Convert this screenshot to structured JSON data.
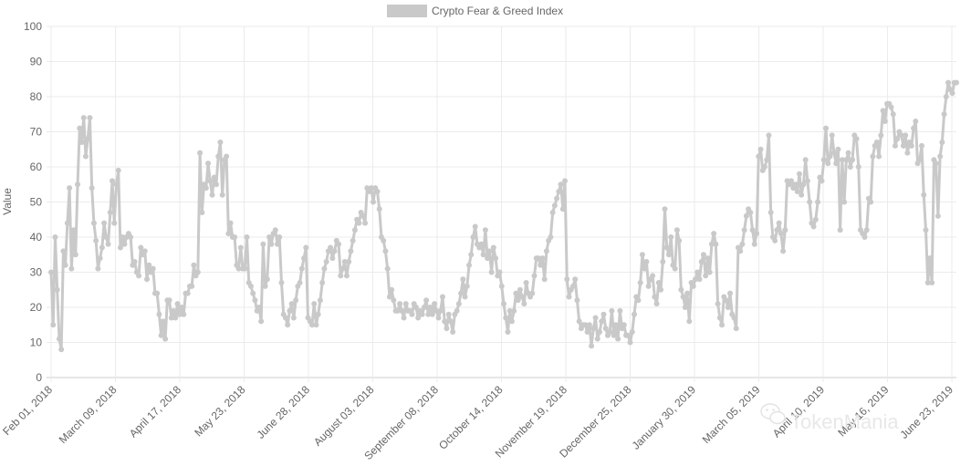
{
  "chart_data": {
    "type": "line",
    "legend": {
      "label": "Crypto Fear & Greed Index",
      "position": "top"
    },
    "ylabel": "Value",
    "ylim": [
      0,
      100
    ],
    "y_ticks": [
      "0",
      "10",
      "20",
      "30",
      "40",
      "50",
      "60",
      "70",
      "80",
      "90",
      "100"
    ],
    "x_ticks": [
      "Feb 01, 2018",
      "March 09, 2018",
      "April 17, 2018",
      "May 23, 2018",
      "June 28, 2018",
      "August 03, 2018",
      "September 08, 2018",
      "October 14, 2018",
      "November 19, 2018",
      "December 25, 2018",
      "January 30, 2019",
      "March 05, 2019",
      "April 10, 2019",
      "May 16, 2019",
      "June 23, 2019"
    ],
    "x_range": [
      "2018-02-01",
      "2019-06-26"
    ],
    "grid": true,
    "series": [
      {
        "name": "Crypto Fear & Greed Index",
        "color": "#c9c9c9",
        "values": [
          30,
          15,
          40,
          25,
          11,
          8,
          36,
          32,
          44,
          54,
          31,
          42,
          35,
          55,
          71,
          67,
          74,
          63,
          68,
          74,
          54,
          44,
          39,
          31,
          34,
          37,
          44,
          40,
          38,
          47,
          56,
          44,
          55,
          59,
          37,
          40,
          38,
          40,
          41,
          40,
          32,
          33,
          30,
          29,
          37,
          35,
          36,
          28,
          32,
          30,
          31,
          24,
          24,
          18,
          12,
          16,
          11,
          22,
          22,
          17,
          19,
          17,
          21,
          18,
          20,
          18,
          24,
          24,
          26,
          26,
          32,
          29,
          30,
          64,
          47,
          55,
          54,
          61,
          56,
          52,
          57,
          55,
          63,
          67,
          52,
          62,
          63,
          41,
          44,
          40,
          40,
          32,
          31,
          37,
          31,
          31,
          40,
          27,
          26,
          24,
          22,
          19,
          20,
          16,
          38,
          26,
          28,
          40,
          38,
          41,
          42,
          38,
          40,
          27,
          18,
          17,
          15,
          19,
          21,
          17,
          22,
          26,
          27,
          31,
          34,
          37,
          17,
          16,
          15,
          21,
          15,
          18,
          22,
          27,
          31,
          33,
          36,
          37,
          34,
          36,
          39,
          38,
          29,
          31,
          33,
          29,
          33,
          36,
          39,
          42,
          45,
          44,
          47,
          46,
          44,
          54,
          53,
          54,
          50,
          54,
          53,
          48,
          40,
          39,
          36,
          31,
          23,
          25,
          22,
          19,
          19,
          21,
          19,
          17,
          21,
          19,
          19,
          18,
          21,
          20,
          17,
          19,
          18,
          20,
          22,
          18,
          20,
          18,
          21,
          19,
          17,
          19,
          23,
          16,
          14,
          18,
          16,
          13,
          18,
          19,
          21,
          24,
          28,
          23,
          26,
          32,
          35,
          40,
          43,
          38,
          37,
          38,
          35,
          42,
          34,
          36,
          30,
          37,
          34,
          29,
          30,
          26,
          21,
          17,
          13,
          19,
          16,
          19,
          24,
          22,
          25,
          23,
          21,
          27,
          24,
          23,
          24,
          29,
          34,
          34,
          32,
          34,
          28,
          36,
          39,
          40,
          47,
          49,
          51,
          53,
          55,
          48,
          56,
          28,
          23,
          25,
          26,
          28,
          22,
          16,
          14,
          15,
          15,
          13,
          15,
          9,
          14,
          17,
          11,
          13,
          16,
          18,
          14,
          12,
          13,
          19,
          12,
          15,
          11,
          19,
          14,
          15,
          12,
          12,
          10,
          13,
          18,
          23,
          22,
          27,
          35,
          31,
          33,
          26,
          28,
          29,
          23,
          21,
          27,
          25,
          33,
          48,
          37,
          35,
          40,
          32,
          31,
          42,
          39,
          25,
          23,
          20,
          24,
          16,
          27,
          26,
          28,
          30,
          28,
          33,
          35,
          29,
          34,
          30,
          38,
          41,
          38,
          21,
          17,
          15,
          23,
          22,
          20,
          24,
          18,
          17,
          14,
          37,
          36,
          38,
          42,
          46,
          48,
          47,
          42,
          38,
          41,
          63,
          65,
          59,
          60,
          62,
          69,
          47,
          40,
          39,
          42,
          44,
          41,
          36,
          42,
          56,
          55,
          56,
          54,
          55,
          53,
          58,
          52,
          55,
          62,
          56,
          50,
          44,
          43,
          45,
          50,
          57,
          56,
          62,
          71,
          61,
          63,
          69,
          64,
          61,
          65,
          42,
          62,
          50,
          62,
          64,
          60,
          62,
          69,
          68,
          60,
          42,
          41,
          40,
          42,
          51,
          50,
          63,
          66,
          67,
          63,
          69,
          76,
          73,
          78,
          78,
          77,
          75,
          66,
          68,
          70,
          69,
          66,
          69,
          64,
          67,
          66,
          71,
          73,
          61,
          62,
          66,
          52,
          42,
          27,
          34,
          27,
          62,
          61,
          46,
          63,
          67,
          75,
          80,
          84,
          82,
          81,
          84,
          84
        ]
      }
    ]
  },
  "watermark": {
    "text": "TokenMania",
    "icon": "wechat-icon"
  }
}
